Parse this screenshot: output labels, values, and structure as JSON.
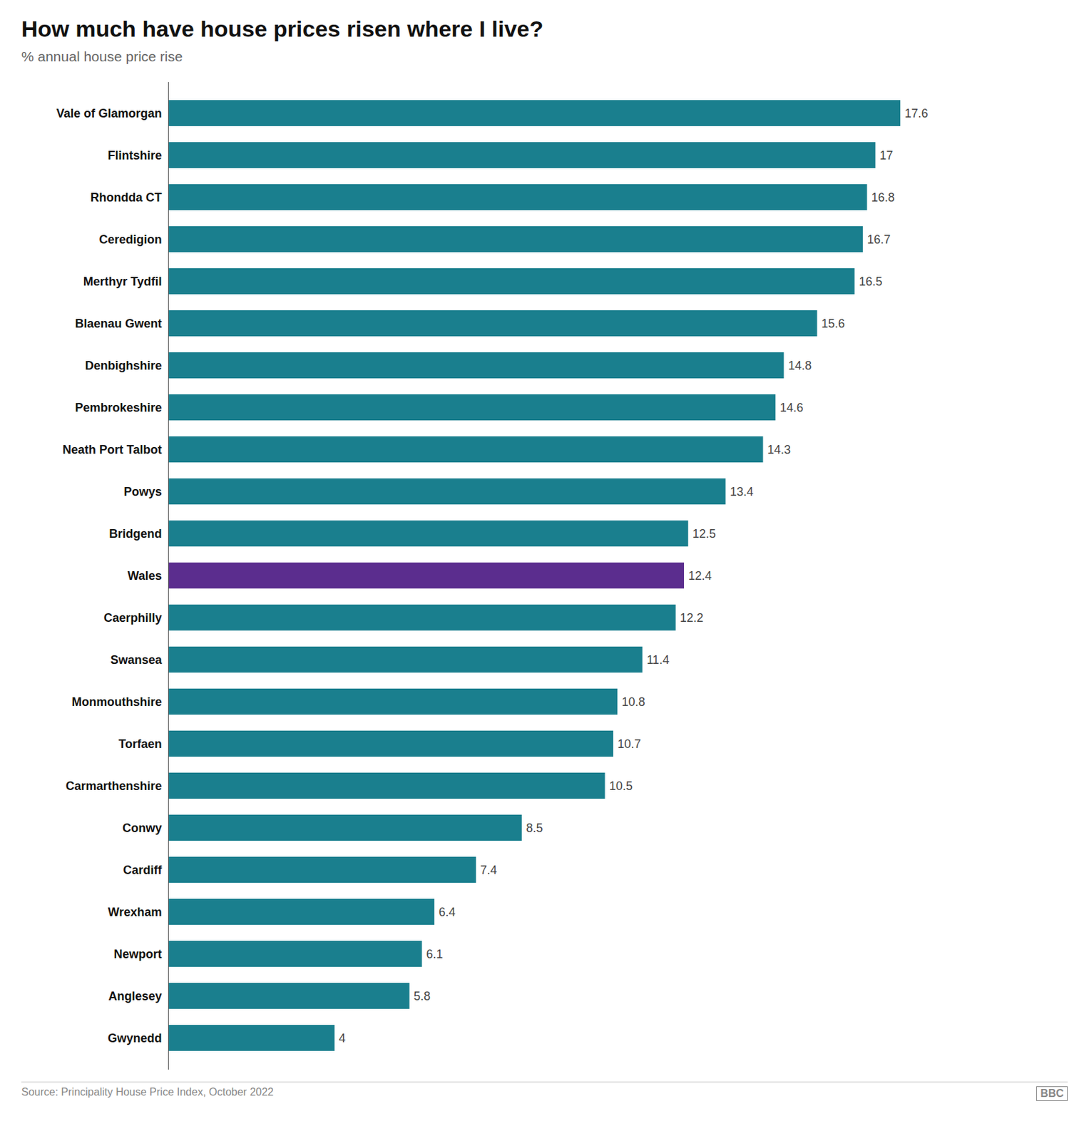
{
  "chart_data": {
    "type": "bar",
    "orientation": "horizontal",
    "title": "How much have house prices risen where I live?",
    "subtitle": "% annual house price rise",
    "source": "Source: Principality House Price Index, October 2022",
    "annotations": [
      "BBC"
    ],
    "categories": [
      "Vale of Glamorgan",
      "Flintshire",
      "Rhondda CT",
      "Ceredigion",
      "Merthyr Tydfil",
      "Blaenau Gwent",
      "Denbighshire",
      "Pembrokeshire",
      "Neath Port Talbot",
      "Powys",
      "Bridgend",
      "Wales",
      "Caerphilly",
      "Swansea",
      "Monmouthshire",
      "Torfaen",
      "Carmarthenshire",
      "Conwy",
      "Cardiff",
      "Wrexham",
      "Newport",
      "Anglesey",
      "Gwynedd"
    ],
    "values": [
      17.6,
      17.0,
      16.8,
      16.7,
      16.5,
      15.6,
      14.8,
      14.6,
      14.3,
      13.4,
      12.5,
      12.4,
      12.2,
      11.4,
      10.8,
      10.7,
      10.5,
      8.5,
      7.4,
      6.4,
      6.1,
      5.8,
      4.0
    ],
    "colors": [
      "#1a7f8e",
      "#1a7f8e",
      "#1a7f8e",
      "#1a7f8e",
      "#1a7f8e",
      "#1a7f8e",
      "#1a7f8e",
      "#1a7f8e",
      "#1a7f8e",
      "#1a7f8e",
      "#1a7f8e",
      "#5b2d8e",
      "#1a7f8e",
      "#1a7f8e",
      "#1a7f8e",
      "#1a7f8e",
      "#1a7f8e",
      "#1a7f8e",
      "#1a7f8e",
      "#1a7f8e",
      "#1a7f8e",
      "#1a7f8e",
      "#1a7f8e"
    ],
    "xlim": [
      0,
      20.5
    ],
    "data_labels": true,
    "tick_labels": "y",
    "grid": false
  }
}
